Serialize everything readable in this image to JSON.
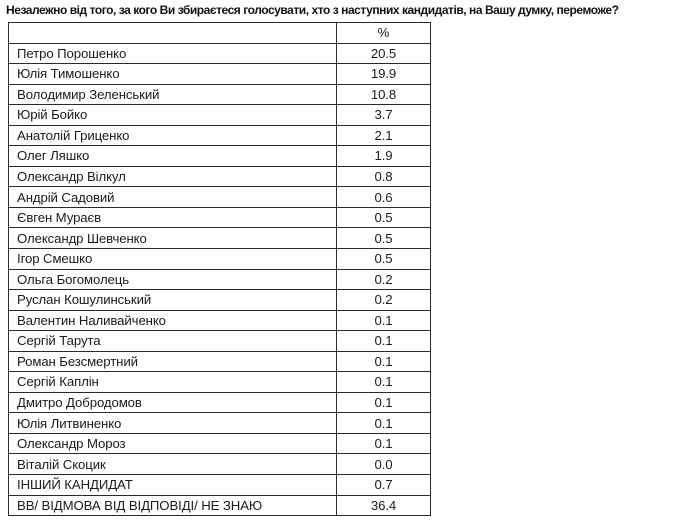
{
  "page": {
    "title": "Незалежно від того, за кого Ви збираєтеся голосувати, хто з наступних кандидатів, на Вашу думку, переможе?"
  },
  "colors": {
    "background": "#ffffff",
    "text": "#1b1b1b",
    "border": "#2a2a2a"
  },
  "table": {
    "header": {
      "candidate": "",
      "percent": "%"
    },
    "rows": [
      {
        "label": "Петро Порошенко",
        "value": "20.5"
      },
      {
        "label": "Юлія Тимошенко",
        "value": "19.9"
      },
      {
        "label": "Володимир Зеленський",
        "value": "10.8"
      },
      {
        "label": "Юрій Бойко",
        "value": "3.7"
      },
      {
        "label": "Анатолій Гриценко",
        "value": "2.1"
      },
      {
        "label": "Олег Ляшко",
        "value": "1.9"
      },
      {
        "label": "Олександр Вілкул",
        "value": "0.8"
      },
      {
        "label": "Андрій Садовий",
        "value": "0.6"
      },
      {
        "label": "Євген Мураєв",
        "value": "0.5"
      },
      {
        "label": "Олександр Шевченко",
        "value": "0.5"
      },
      {
        "label": "Ігор Смешко",
        "value": "0.5"
      },
      {
        "label": "Ольга Богомолець",
        "value": "0.2"
      },
      {
        "label": "Руслан Кошулинський",
        "value": "0.2"
      },
      {
        "label": "Валентин Наливайченко",
        "value": "0.1"
      },
      {
        "label": "Сергій Тарута",
        "value": "0.1"
      },
      {
        "label": "Роман Безсмертний",
        "value": "0.1"
      },
      {
        "label": "Сергій Каплін",
        "value": "0.1"
      },
      {
        "label": "Дмитро Добродомов",
        "value": "0.1"
      },
      {
        "label": "Юлія Литвиненко",
        "value": "0.1"
      },
      {
        "label": "Олександр Мороз",
        "value": "0.1"
      },
      {
        "label": "Віталій Скоцик",
        "value": "0.0"
      },
      {
        "label": "ІНШИЙ КАНДИДАТ",
        "value": "0.7"
      },
      {
        "label": "ВВ/ ВІДМОВА ВІД ВІДПОВІДІ/ НЕ ЗНАЮ",
        "value": "36.4"
      }
    ]
  },
  "chart_data": {
    "type": "table",
    "title": "Незалежно від того, за кого Ви збираєтеся голосувати, хто з наступних кандидатів, на Вашу думку, переможе?",
    "columns": [
      "",
      "%"
    ],
    "categories": [
      "Петро Порошенко",
      "Юлія Тимошенко",
      "Володимир Зеленський",
      "Юрій Бойко",
      "Анатолій Гриценко",
      "Олег Ляшко",
      "Олександр Вілкул",
      "Андрій Садовий",
      "Євген Мураєв",
      "Олександр Шевченко",
      "Ігор Смешко",
      "Ольга Богомолець",
      "Руслан Кошулинський",
      "Валентин Наливайченко",
      "Сергій Тарута",
      "Роман Безсмертний",
      "Сергій Каплін",
      "Дмитро Добродомов",
      "Юлія Литвиненко",
      "Олександр Мороз",
      "Віталій Скоцик",
      "ІНШИЙ КАНДИДАТ",
      "ВВ/ ВІДМОВА ВІД ВІДПОВІДІ/ НЕ ЗНАЮ"
    ],
    "values": [
      20.5,
      19.9,
      10.8,
      3.7,
      2.1,
      1.9,
      0.8,
      0.6,
      0.5,
      0.5,
      0.5,
      0.2,
      0.2,
      0.1,
      0.1,
      0.1,
      0.1,
      0.1,
      0.1,
      0.1,
      0.0,
      0.7,
      36.4
    ],
    "value_unit": "%",
    "grid": true,
    "legend": "none"
  }
}
